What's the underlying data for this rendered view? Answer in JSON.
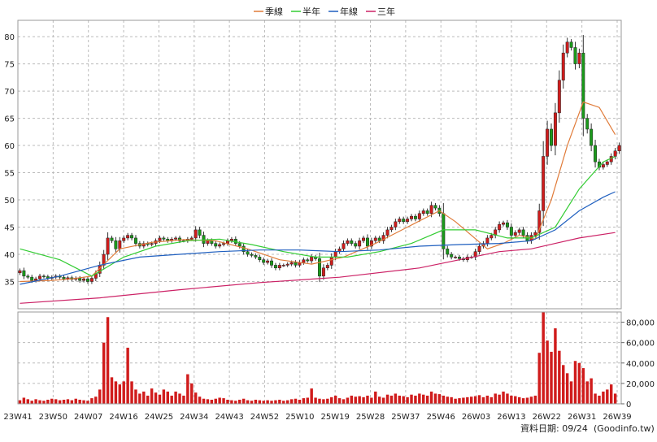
{
  "legend": [
    {
      "label": "季線",
      "color": "#e07b39"
    },
    {
      "label": "半年",
      "color": "#33cc33"
    },
    {
      "label": "年線",
      "color": "#1f5fbf"
    },
    {
      "label": "三年",
      "color": "#cc2266"
    }
  ],
  "footer": {
    "date_label": "資料日期: 09/24",
    "source": "(Goodinfo.tw)"
  },
  "colors": {
    "up": "#d01c1c",
    "down": "#1a9a1a",
    "volume": "#d01c1c"
  },
  "chart_data": [
    {
      "type": "candlestick",
      "name": "price",
      "ylim": [
        30,
        83
      ],
      "yticks": [
        35,
        40,
        45,
        50,
        55,
        60,
        65,
        70,
        75,
        80
      ],
      "xticks": [
        "23W41",
        "23W50",
        "24W07",
        "24W16",
        "24W25",
        "24W34",
        "24W43",
        "24W52",
        "25W10",
        "25W19",
        "25W28",
        "25W37",
        "25W46",
        "26W03",
        "26W13",
        "26W22",
        "26W31",
        "26W39"
      ],
      "close": [
        37.0,
        36.0,
        35.8,
        35.2,
        35.5,
        36.0,
        35.9,
        35.6,
        35.8,
        36.0,
        35.8,
        35.5,
        35.7,
        35.4,
        35.6,
        35.2,
        35.5,
        35.0,
        35.6,
        36.5,
        38.0,
        40.0,
        43.0,
        42.5,
        41.0,
        42.5,
        43.0,
        43.5,
        43.0,
        42.0,
        41.5,
        42.0,
        41.8,
        42.0,
        42.5,
        43.0,
        42.8,
        42.5,
        42.8,
        43.0,
        42.5,
        42.5,
        42.8,
        43.0,
        44.5,
        43.5,
        42.0,
        42.5,
        42.0,
        41.5,
        41.8,
        42.0,
        42.5,
        42.8,
        42.0,
        41.5,
        40.5,
        40.0,
        39.8,
        39.5,
        39.0,
        38.5,
        38.8,
        38.0,
        37.5,
        38.0,
        38.0,
        38.2,
        38.5,
        38.0,
        38.5,
        39.0,
        38.8,
        39.5,
        39.2,
        36.0,
        37.5,
        38.0,
        39.5,
        40.5,
        41.0,
        42.0,
        42.5,
        42.0,
        41.5,
        42.5,
        43.0,
        41.5,
        42.5,
        43.0,
        42.5,
        43.5,
        44.5,
        45.0,
        46.0,
        46.5,
        46.0,
        46.5,
        47.0,
        46.5,
        47.5,
        48.0,
        47.5,
        49.0,
        48.5,
        47.5,
        41.0,
        40.0,
        39.5,
        39.5,
        39.2,
        39.0,
        39.5,
        39.5,
        40.5,
        41.5,
        42.0,
        43.0,
        43.5,
        44.5,
        45.5,
        45.8,
        45.0,
        43.5,
        44.0,
        44.5,
        43.5,
        42.5,
        43.5,
        44.0,
        48.0,
        58.0,
        63.0,
        60.0,
        66.0,
        72.0,
        77.0,
        79.0,
        78.0,
        75.0,
        77.0,
        65.0,
        63.0,
        60.0,
        57.0,
        56.0,
        56.5,
        57.0,
        58.0,
        59.0,
        60.0
      ],
      "xlabel": "",
      "ylabel": ""
    },
    {
      "type": "line",
      "name": "moving_averages",
      "series": [
        {
          "name": "季線",
          "points": [
            [
              0,
              35.0
            ],
            [
              8,
              35.2
            ],
            [
              13,
              35.5
            ],
            [
              18,
              36.0
            ],
            [
              25,
              41.0
            ],
            [
              33,
              42.2
            ],
            [
              41,
              42.7
            ],
            [
              49,
              42.5
            ],
            [
              57,
              41.0
            ],
            [
              65,
              39.0
            ],
            [
              73,
              38.2
            ],
            [
              81,
              39.5
            ],
            [
              89,
              42.0
            ],
            [
              97,
              45.0
            ],
            [
              105,
              48.0
            ],
            [
              109,
              46.0
            ],
            [
              113,
              43.5
            ],
            [
              117,
              41.0
            ],
            [
              121,
              42.0
            ],
            [
              125,
              43.5
            ],
            [
              129,
              42.8
            ],
            [
              133,
              50.0
            ],
            [
              137,
              60.0
            ],
            [
              141,
              68.0
            ],
            [
              145,
              67.0
            ],
            [
              149,
              62.0
            ]
          ]
        },
        {
          "name": "半年",
          "points": [
            [
              0,
              41.0
            ],
            [
              10,
              39.0
            ],
            [
              18,
              36.0
            ],
            [
              26,
              39.5
            ],
            [
              34,
              41.5
            ],
            [
              42,
              42.5
            ],
            [
              50,
              42.8
            ],
            [
              58,
              41.8
            ],
            [
              66,
              40.5
            ],
            [
              74,
              39.5
            ],
            [
              82,
              39.5
            ],
            [
              90,
              40.5
            ],
            [
              98,
              42.0
            ],
            [
              106,
              44.5
            ],
            [
              114,
              44.5
            ],
            [
              122,
              43.0
            ],
            [
              128,
              43.0
            ],
            [
              134,
              45.0
            ],
            [
              140,
              52.0
            ],
            [
              146,
              57.0
            ],
            [
              149,
              58.0
            ]
          ]
        },
        {
          "name": "年線",
          "points": [
            [
              0,
              34.5
            ],
            [
              10,
              36.0
            ],
            [
              20,
              38.0
            ],
            [
              30,
              39.5
            ],
            [
              40,
              40.0
            ],
            [
              50,
              40.5
            ],
            [
              60,
              40.8
            ],
            [
              70,
              40.8
            ],
            [
              80,
              40.5
            ],
            [
              90,
              40.8
            ],
            [
              100,
              41.5
            ],
            [
              110,
              41.8
            ],
            [
              120,
              42.0
            ],
            [
              128,
              42.5
            ],
            [
              134,
              44.5
            ],
            [
              140,
              48.0
            ],
            [
              146,
              50.5
            ],
            [
              149,
              51.5
            ]
          ]
        },
        {
          "name": "三年",
          "points": [
            [
              0,
              31.0
            ],
            [
              20,
              32.0
            ],
            [
              40,
              33.5
            ],
            [
              60,
              34.8
            ],
            [
              80,
              35.8
            ],
            [
              100,
              37.5
            ],
            [
              110,
              39.0
            ],
            [
              120,
              40.5
            ],
            [
              128,
              41.0
            ],
            [
              134,
              42.0
            ],
            [
              140,
              43.0
            ],
            [
              149,
              44.0
            ]
          ]
        }
      ],
      "xlabel": "",
      "ylabel": ""
    },
    {
      "type": "bar",
      "name": "volume",
      "ylim": [
        0,
        90000
      ],
      "yticks": [
        0,
        20000,
        40000,
        60000,
        80000
      ],
      "yticklabels": [
        "0",
        "20,000",
        "40,000",
        "60,000",
        "80,000"
      ],
      "values": [
        3500,
        6000,
        4500,
        3000,
        4500,
        3500,
        3000,
        4000,
        5000,
        4500,
        3500,
        4000,
        4500,
        3500,
        5000,
        4000,
        3500,
        3000,
        5500,
        7000,
        14000,
        60000,
        85000,
        26000,
        22000,
        19000,
        22000,
        55000,
        22000,
        14000,
        10000,
        12000,
        8000,
        15000,
        11000,
        9000,
        14000,
        12000,
        8000,
        12000,
        10000,
        8000,
        29000,
        20000,
        11000,
        7000,
        5000,
        4500,
        4000,
        5000,
        6000,
        5500,
        4000,
        3500,
        3000,
        4000,
        5000,
        3500,
        3000,
        4000,
        3500,
        3000,
        3500,
        3000,
        3500,
        4000,
        3000,
        3500,
        4500,
        5000,
        4000,
        5500,
        6000,
        15000,
        6000,
        5000,
        4500,
        5000,
        6500,
        8000,
        5500,
        4500,
        6000,
        8000,
        7000,
        7500,
        6500,
        8000,
        6000,
        12000,
        7000,
        6000,
        9000,
        8000,
        10000,
        8000,
        7500,
        6500,
        9000,
        8000,
        10000,
        9000,
        8000,
        12000,
        10000,
        9500,
        8000,
        7000,
        6500,
        5000,
        5500,
        6000,
        6500,
        7000,
        7500,
        8500,
        6500,
        8000,
        6500,
        10000,
        9000,
        12000,
        10000,
        8000,
        7500,
        6500,
        5500,
        6000,
        7000,
        8000,
        50000,
        90000,
        62000,
        51000,
        74000,
        52000,
        38000,
        30000,
        22000,
        42000,
        40000,
        35000,
        22000,
        25000,
        10000,
        8000,
        12000,
        14000,
        19000,
        10000
      ]
    }
  ]
}
